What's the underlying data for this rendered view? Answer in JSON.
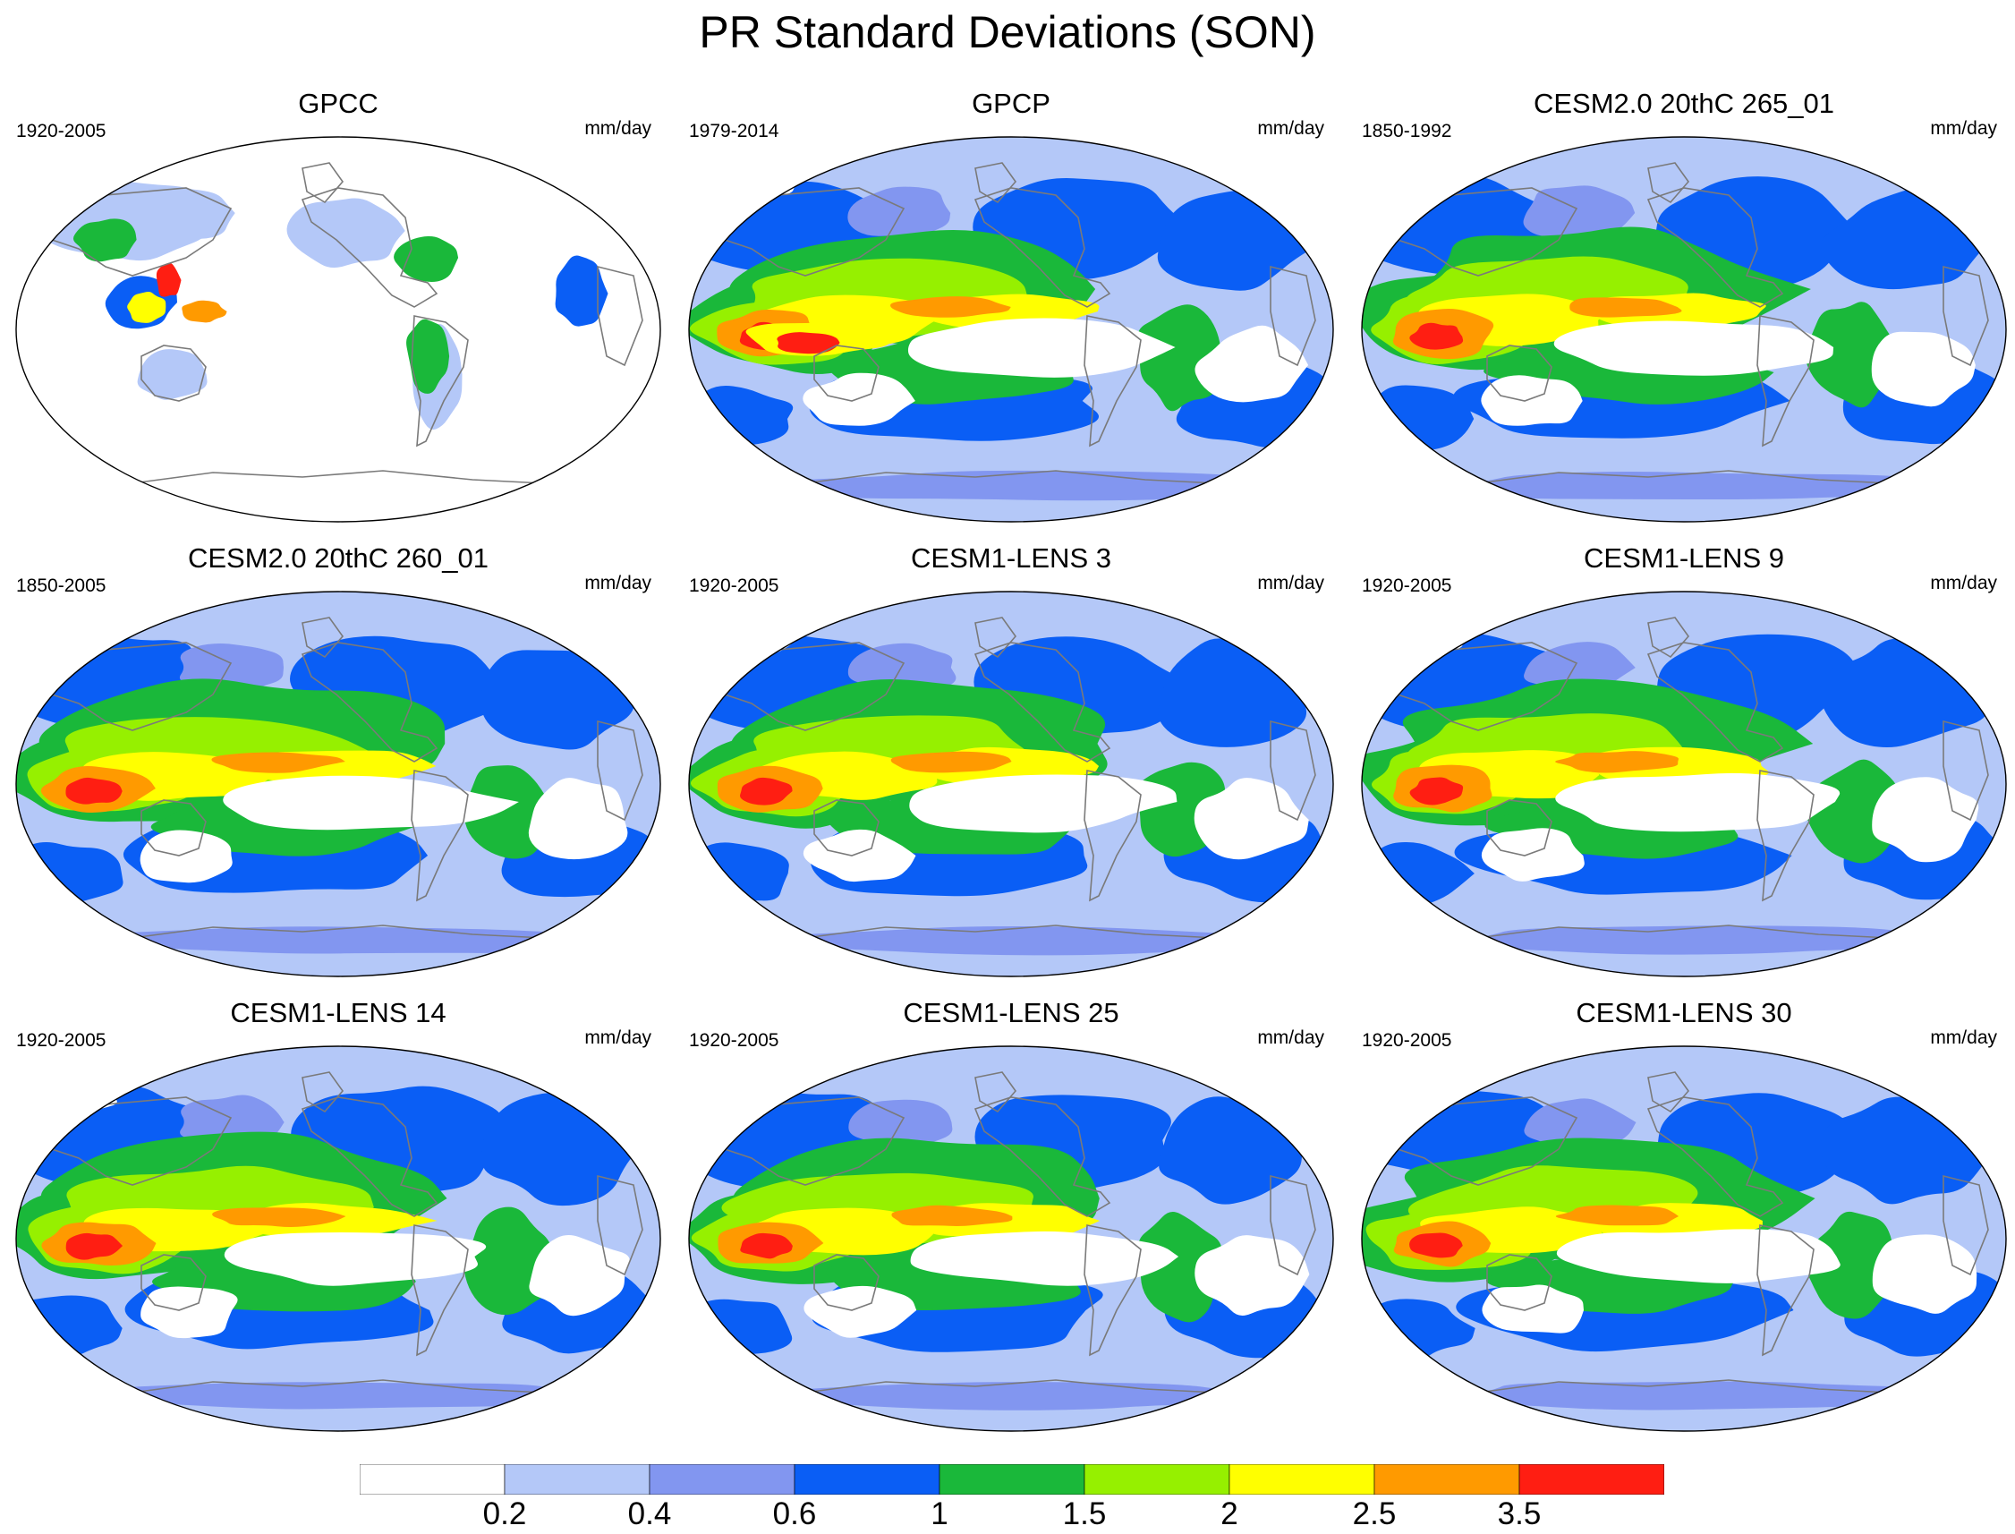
{
  "title": "PR Standard Deviations (SON)",
  "panels": [
    {
      "title": "GPCC",
      "period": "1920-2005",
      "units": "mm/day",
      "pattern": "observed-land"
    },
    {
      "title": "GPCP",
      "period": "1979-2014",
      "units": "mm/day",
      "pattern": "observed-global"
    },
    {
      "title": "CESM2.0 20thC 265_01",
      "period": "1850-1992",
      "units": "mm/day",
      "pattern": "model"
    },
    {
      "title": "CESM2.0 20thC 260_01",
      "period": "1850-2005",
      "units": "mm/day",
      "pattern": "model"
    },
    {
      "title": "CESM1-LENS 3",
      "period": "1920-2005",
      "units": "mm/day",
      "pattern": "model"
    },
    {
      "title": "CESM1-LENS 9",
      "period": "1920-2005",
      "units": "mm/day",
      "pattern": "model"
    },
    {
      "title": "CESM1-LENS 14",
      "period": "1920-2005",
      "units": "mm/day",
      "pattern": "model"
    },
    {
      "title": "CESM1-LENS 25",
      "period": "1920-2005",
      "units": "mm/day",
      "pattern": "model"
    },
    {
      "title": "CESM1-LENS 30",
      "period": "1920-2005",
      "units": "mm/day",
      "pattern": "model"
    }
  ],
  "colorbar": {
    "labels": [
      "0.2",
      "0.4",
      "0.6",
      "1",
      "1.5",
      "2",
      "2.5",
      "3.5"
    ],
    "colors": [
      "#ffffff",
      "#b4c8f8",
      "#8296f0",
      "#0a5ef5",
      "#1ab83a",
      "#96f000",
      "#ffff00",
      "#ff9a00",
      "#ff1e12"
    ]
  },
  "colors": {
    "coastline": "#7a7a7a",
    "map_border": "#000000"
  }
}
